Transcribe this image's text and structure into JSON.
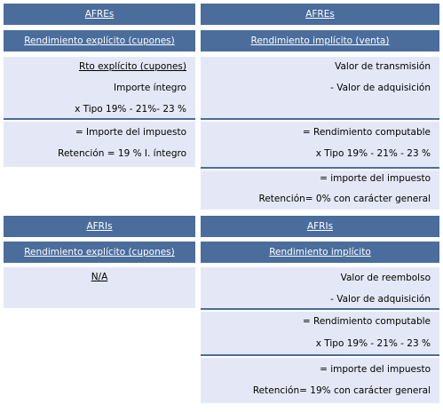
{
  "top": {
    "left": {
      "title": "AFREs",
      "subtitle": "Rendimiento explícito (cupones)",
      "group1": [
        "Rto explícito (cupones)",
        "Importe  íntegro",
        "x Tipo 19% - 21%- 23 %"
      ],
      "group2": [
        "= Importe del impuesto",
        "Retención = 19 % I. íntegro"
      ]
    },
    "right": {
      "title": "AFREs",
      "subtitle": "Rendimiento implícito (venta)",
      "group1": [
        "Valor de transmisión",
        "- Valor de adquisición"
      ],
      "group2": [
        "= Rendimiento computable",
        "x  Tipo 19% - 21% - 23 %"
      ],
      "group3": [
        "= importe del impuesto",
        "Retención= 0% con carácter general"
      ]
    }
  },
  "bottom": {
    "left": {
      "title": "AFRIs",
      "subtitle": "Rendimiento explícito (cupones)",
      "na": "N/A"
    },
    "right": {
      "title": "AFRIs",
      "subtitle": "Rendimiento implícito",
      "group1": [
        "Valor de reembolso",
        "- Valor de adquisición"
      ],
      "group2": [
        "= Rendimiento computable",
        "x  Tipo 19% - 21% - 23 %"
      ],
      "group3": [
        "= importe del impuesto",
        "Retención= 19% con carácter general"
      ]
    }
  },
  "colors": {
    "header": "#4a6d9c",
    "light": "#e4e8f6"
  }
}
